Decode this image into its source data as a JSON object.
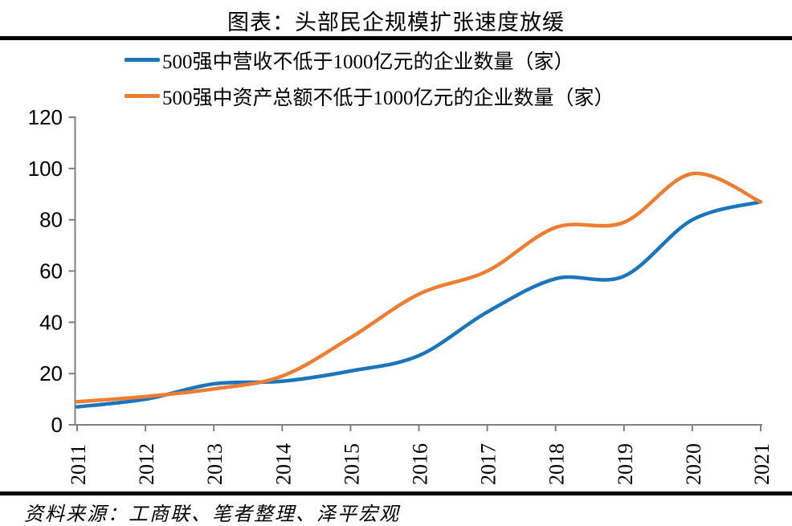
{
  "title": "图表：头部民企规模扩张速度放缓",
  "source": "资料来源：工商联、笔者整理、泽平宏观",
  "colors": {
    "series_blue": "#1b75bc",
    "series_orange": "#ee7d31",
    "axis": "#808080",
    "text": "#000000",
    "rule": "#000000"
  },
  "chart_data": {
    "type": "line",
    "title": "图表：头部民企规模扩张速度放缓",
    "x": [
      2011,
      2012,
      2013,
      2014,
      2015,
      2016,
      2017,
      2018,
      2019,
      2020,
      2021
    ],
    "series": [
      {
        "name": "500强中营收不低于1000亿元的企业数量（家）",
        "color": "#1b75bc",
        "values": [
          7,
          10,
          16,
          17,
          21,
          27,
          44,
          57,
          58,
          80,
          87
        ]
      },
      {
        "name": "500强中资产总额不低于1000亿元的企业数量（家）",
        "color": "#ee7d31",
        "values": [
          9,
          11,
          14,
          19,
          34,
          51,
          60,
          77,
          79,
          98,
          87
        ]
      }
    ],
    "xlabel": "",
    "ylabel": "",
    "ylim": [
      0,
      120
    ],
    "ytick_step": 20,
    "yticks": [
      0,
      20,
      40,
      60,
      80,
      100,
      120
    ],
    "grid": false,
    "smooth": true,
    "legend_position": "top-left",
    "x_label_rotation": -90
  }
}
